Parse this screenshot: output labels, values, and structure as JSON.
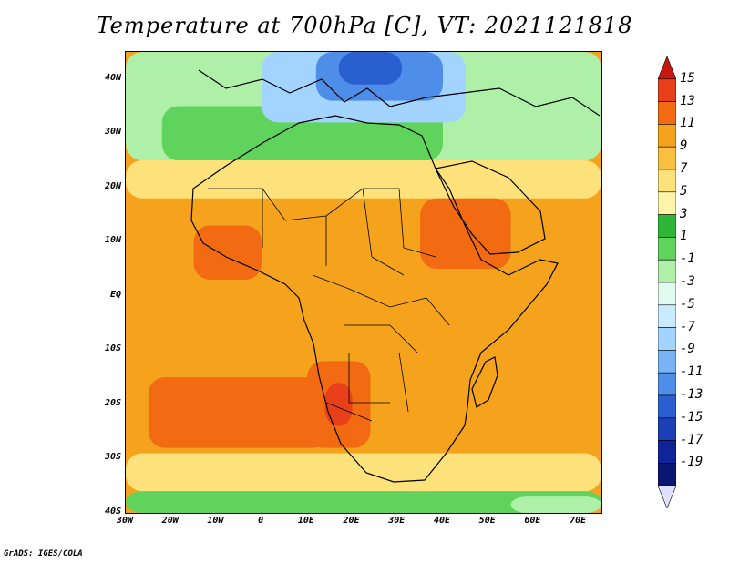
{
  "title": "Temperature at 700hPa [C], VT: 2021121818",
  "credit": "GrADS: IGES/COLA",
  "map": {
    "lon_range": [
      -30,
      75
    ],
    "lat_range": [
      -40,
      45
    ],
    "lat_ticks": [
      {
        "value": 40,
        "label": "40N"
      },
      {
        "value": 30,
        "label": "30N"
      },
      {
        "value": 20,
        "label": "20N"
      },
      {
        "value": 10,
        "label": "10N"
      },
      {
        "value": 0,
        "label": "EQ"
      },
      {
        "value": -10,
        "label": "10S"
      },
      {
        "value": -20,
        "label": "20S"
      },
      {
        "value": -30,
        "label": "30S"
      },
      {
        "value": -40,
        "label": "40S"
      }
    ],
    "lon_ticks": [
      {
        "value": -30,
        "label": "30W"
      },
      {
        "value": -20,
        "label": "20W"
      },
      {
        "value": -10,
        "label": "10W"
      },
      {
        "value": 0,
        "label": "0"
      },
      {
        "value": 10,
        "label": "10E"
      },
      {
        "value": 20,
        "label": "20E"
      },
      {
        "value": 30,
        "label": "30E"
      },
      {
        "value": 40,
        "label": "40E"
      },
      {
        "value": 50,
        "label": "50E"
      },
      {
        "value": 60,
        "label": "60E"
      },
      {
        "value": 70,
        "label": "70E"
      }
    ],
    "background_color": "#f5a31c",
    "fields": [
      {
        "name": "northern-cool-band",
        "color": "#aef0a8",
        "lon": [
          -30,
          75
        ],
        "lat": [
          25,
          45
        ]
      },
      {
        "name": "sahara-green-band",
        "color": "#5fd35c",
        "lon": [
          -22,
          40
        ],
        "lat": [
          25,
          35
        ]
      },
      {
        "name": "north-cold-pool",
        "color": "#a3d4ff",
        "lon": [
          0,
          45
        ],
        "lat": [
          32,
          45
        ]
      },
      {
        "name": "mediterranean-cold-core",
        "color": "#4f8ee8",
        "lon": [
          12,
          40
        ],
        "lat": [
          36,
          45
        ]
      },
      {
        "name": "aegean-coldest",
        "color": "#2a5fd0",
        "lon": [
          17,
          31
        ],
        "lat": [
          39,
          45
        ]
      },
      {
        "name": "sahel-warm-band",
        "color": "#fde17a",
        "lon": [
          -30,
          75
        ],
        "lat": [
          18,
          25
        ]
      },
      {
        "name": "east-africa-hot",
        "color": "#f26b12",
        "lon": [
          35,
          55
        ],
        "lat": [
          5,
          18
        ]
      },
      {
        "name": "west-africa-hot",
        "color": "#f26b12",
        "lon": [
          -15,
          0
        ],
        "lat": [
          3,
          13
        ]
      },
      {
        "name": "south-atlantic-hot",
        "color": "#f26b12",
        "lon": [
          -25,
          15
        ],
        "lat": [
          -28,
          -15
        ]
      },
      {
        "name": "namibia-hot",
        "color": "#f26b12",
        "lon": [
          10,
          24
        ],
        "lat": [
          -28,
          -12
        ]
      },
      {
        "name": "kalahari-core",
        "color": "#e8401a",
        "lon": [
          14,
          20
        ],
        "lat": [
          -24,
          -16
        ]
      },
      {
        "name": "southern-cool-band",
        "color": "#fde17a",
        "lon": [
          -30,
          75
        ],
        "lat": [
          -36,
          -29
        ]
      },
      {
        "name": "southern-ocean-green",
        "color": "#5fd35c",
        "lon": [
          -30,
          75
        ],
        "lat": [
          -40,
          -36
        ]
      },
      {
        "name": "south-indian-cool",
        "color": "#aef0a8",
        "lon": [
          55,
          75
        ],
        "lat": [
          -40,
          -37
        ]
      }
    ]
  },
  "colorbar": {
    "ticks": [
      "15",
      "13",
      "11",
      "9",
      "7",
      "5",
      "3",
      "1",
      "-1",
      "-3",
      "-5",
      "-7",
      "-9",
      "-11",
      "-13",
      "-15",
      "-17",
      "-19"
    ],
    "colors": [
      "#c8170f",
      "#e8401a",
      "#f26b12",
      "#f5a31c",
      "#f9c042",
      "#fde17a",
      "#fef4a8",
      "#2fb637",
      "#5fd35c",
      "#aef0a8",
      "#e1fbf0",
      "#c8ebff",
      "#a3d4ff",
      "#78b4f5",
      "#4f8ee8",
      "#2a5fd0",
      "#1c3fb5",
      "#0f249a",
      "#0a1670",
      "#dde0ff"
    ]
  }
}
